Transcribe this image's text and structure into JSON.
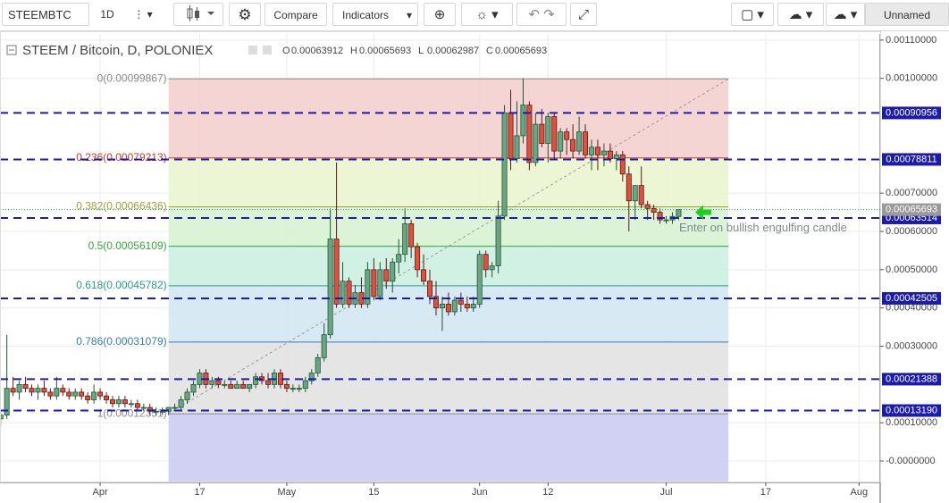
{
  "toolbar": {
    "symbol": "STEEMBTC",
    "interval": "1D",
    "compare": "Compare",
    "indicators": "Indicators",
    "layout": "Unnamed"
  },
  "chart_data": {
    "type": "candlestick",
    "title": "STEEM / Bitcoin, D, POLONIEX",
    "ohlc_legend": [
      {
        "label": "O",
        "value": 0.00063912
      },
      {
        "label": "H",
        "value": 0.00065693
      },
      {
        "label": "L",
        "value": 0.00062987
      },
      {
        "label": "C",
        "value": 0.00065693
      }
    ],
    "x": [
      75,
      76,
      77,
      78,
      79,
      80,
      81,
      82,
      83,
      84,
      85,
      86,
      87,
      88,
      89,
      90,
      91,
      92,
      93,
      94,
      95,
      96,
      97,
      98,
      99,
      100,
      101,
      102,
      103,
      104,
      105,
      106,
      107,
      108,
      109,
      110,
      111,
      112,
      113,
      114,
      115,
      116,
      117,
      118,
      119,
      120,
      121,
      122,
      123,
      124,
      125,
      126,
      127,
      128,
      129,
      130,
      131,
      132,
      133,
      134,
      135,
      136,
      137,
      138,
      139,
      140,
      141,
      142,
      143,
      144,
      145,
      146,
      147,
      148,
      149,
      150,
      151,
      152,
      153,
      154,
      155,
      156,
      157,
      158,
      159,
      160,
      161,
      162,
      163,
      164,
      165,
      166,
      167,
      168,
      169,
      170,
      171,
      172,
      173,
      174,
      175,
      176,
      177,
      178,
      179,
      180,
      181,
      182,
      183,
      184
    ],
    "open": [
      0.00011,
      0.00012,
      0.00019,
      0.00018,
      0.0002,
      0.00019,
      0.00018,
      0.00019,
      0.00018,
      0.00017,
      0.00019,
      0.00018,
      0.00017,
      0.00018,
      0.00017,
      0.00016,
      0.00018,
      0.00017,
      0.00016,
      0.00015,
      0.00016,
      0.00015,
      0.00015,
      0.00014,
      0.00014,
      0.00013,
      0.00013,
      0.00013,
      0.00014,
      0.00014,
      0.00016,
      0.00018,
      0.0002,
      0.00023,
      0.0002,
      0.00021,
      0.0002,
      0.0002,
      0.00019,
      0.0002,
      0.00019,
      0.0002,
      0.00022,
      0.00021,
      0.0002,
      0.00023,
      0.0002,
      0.00019,
      0.00019,
      0.00019,
      0.00021,
      0.00023,
      0.00027,
      0.00033,
      0.00058,
      0.00041,
      0.00047,
      0.00041,
      0.00044,
      0.00041,
      0.0005,
      0.00043,
      0.0005,
      0.00047,
      0.00052,
      0.00054,
      0.00062,
      0.00056,
      0.0005,
      0.00047,
      0.00043,
      0.0004,
      0.00041,
      0.00039,
      0.00042,
      0.00041,
      0.0004,
      0.00041,
      0.00054,
      0.0005,
      0.00051,
      0.00064,
      0.00091,
      0.00079,
      0.00085,
      0.00093,
      0.00078,
      0.00088,
      0.00083,
      0.0009,
      0.00081,
      0.00086,
      0.00084,
      0.00081,
      0.00086,
      0.0008,
      0.00082,
      0.0008,
      0.00081,
      0.00079,
      0.0008,
      0.00075,
      0.00068,
      0.00072,
      0.00067,
      0.00066,
      0.00065,
      0.00063,
      0.00063,
      0.00063912
    ],
    "high": [
      0.00013,
      0.00033,
      0.00022,
      0.00021,
      0.00022,
      0.0002,
      0.0002,
      0.00021,
      0.00019,
      0.00022,
      0.0002,
      0.00019,
      0.00019,
      0.00019,
      0.00018,
      0.0002,
      0.00019,
      0.00018,
      0.00017,
      0.00017,
      0.00017,
      0.00016,
      0.00016,
      0.00015,
      0.00015,
      0.00014,
      0.00014,
      0.00014,
      0.00015,
      0.00017,
      0.00019,
      0.00021,
      0.00024,
      0.00024,
      0.00022,
      0.00022,
      0.00021,
      0.00021,
      0.00021,
      0.00021,
      0.0002,
      0.00023,
      0.00023,
      0.00023,
      0.00024,
      0.00024,
      0.00021,
      0.0002,
      0.0002,
      0.00022,
      0.00024,
      0.00028,
      0.00036,
      0.00066,
      0.00078,
      0.00052,
      0.00048,
      0.00046,
      0.00048,
      0.00052,
      0.00053,
      0.00052,
      0.00053,
      0.00053,
      0.00058,
      0.00066,
      0.00063,
      0.00057,
      0.00054,
      0.0005,
      0.00047,
      0.00043,
      0.00044,
      0.00043,
      0.00044,
      0.00043,
      0.00043,
      0.00055,
      0.00055,
      0.00052,
      0.00068,
      0.00093,
      0.00097,
      0.00094,
      0.001,
      0.00094,
      0.00091,
      0.00092,
      0.00091,
      0.00091,
      0.00087,
      0.00087,
      0.00088,
      0.0009,
      0.00088,
      0.00084,
      0.00084,
      0.00083,
      0.00083,
      0.00081,
      0.00081,
      0.00077,
      0.00072,
      0.00077,
      0.00068,
      0.00067,
      0.00066,
      0.00064,
      0.00065,
      0.00065693
    ],
    "low": [
      9e-05,
      0.00011,
      0.00017,
      0.00016,
      0.00018,
      0.00017,
      0.00016,
      0.00017,
      0.00016,
      0.00016,
      0.00017,
      0.00016,
      0.00016,
      0.00016,
      0.00015,
      0.00015,
      0.00016,
      0.00015,
      0.00014,
      0.00014,
      0.00014,
      0.00014,
      0.00013,
      0.00013,
      0.00012,
      0.00012,
      0.00012,
      0.00012,
      0.00013,
      0.00013,
      0.00015,
      0.00017,
      0.00019,
      0.00019,
      0.00019,
      0.00019,
      0.00019,
      0.00019,
      0.00019,
      0.00019,
      0.00018,
      0.00019,
      0.0002,
      0.00019,
      0.00019,
      0.00019,
      0.00018,
      0.00018,
      0.00018,
      0.00018,
      0.0002,
      0.00022,
      0.00026,
      0.00032,
      0.0004,
      0.0004,
      0.0004,
      0.0004,
      0.0004,
      0.0004,
      0.00042,
      0.00042,
      0.00045,
      0.00044,
      0.00049,
      0.00052,
      0.00053,
      0.00048,
      0.00046,
      0.00041,
      0.00038,
      0.00034,
      0.00038,
      0.00038,
      0.00039,
      0.00039,
      0.00039,
      0.0004,
      0.00048,
      0.00048,
      0.00049,
      0.00063,
      0.00076,
      0.00078,
      0.00083,
      0.00076,
      0.00077,
      0.00082,
      0.00078,
      0.00079,
      0.00079,
      0.0008,
      0.00079,
      0.0008,
      0.00079,
      0.00076,
      0.00076,
      0.00077,
      0.00078,
      0.00076,
      0.00073,
      0.0006,
      0.00063,
      0.00066,
      0.00063,
      0.00063,
      0.00062,
      0.00062,
      0.00062,
      0.00062987
    ],
    "close": [
      0.00012,
      0.00019,
      0.00018,
      0.0002,
      0.00019,
      0.00018,
      0.00019,
      0.00018,
      0.00017,
      0.00019,
      0.00018,
      0.00017,
      0.00018,
      0.00017,
      0.00016,
      0.00018,
      0.00017,
      0.00016,
      0.00015,
      0.00016,
      0.00015,
      0.00015,
      0.00014,
      0.00014,
      0.00013,
      0.00013,
      0.00013,
      0.00014,
      0.00014,
      0.00016,
      0.00018,
      0.0002,
      0.00023,
      0.0002,
      0.00021,
      0.0002,
      0.0002,
      0.00019,
      0.0002,
      0.00019,
      0.0002,
      0.00022,
      0.00021,
      0.0002,
      0.00023,
      0.0002,
      0.00019,
      0.00019,
      0.00019,
      0.00021,
      0.00023,
      0.00027,
      0.00033,
      0.00058,
      0.00041,
      0.00047,
      0.00041,
      0.00044,
      0.00041,
      0.0005,
      0.00043,
      0.0005,
      0.00047,
      0.00052,
      0.00054,
      0.00062,
      0.00056,
      0.0005,
      0.00047,
      0.00043,
      0.0004,
      0.00041,
      0.00039,
      0.00042,
      0.00041,
      0.0004,
      0.00041,
      0.00054,
      0.0005,
      0.00051,
      0.00064,
      0.00091,
      0.00079,
      0.00085,
      0.00093,
      0.00078,
      0.00088,
      0.00083,
      0.0009,
      0.00081,
      0.00086,
      0.00084,
      0.00081,
      0.00086,
      0.0008,
      0.00082,
      0.0008,
      0.00081,
      0.00079,
      0.0008,
      0.00075,
      0.00068,
      0.00072,
      0.00067,
      0.00066,
      0.00065,
      0.00063,
      0.00063,
      0.00063912,
      0.00065693
    ],
    "up_color": "#6ba583",
    "down_color": "#d75442",
    "xlim": [
      74.9,
      216.4
    ],
    "xticks": [
      {
        "value": 91,
        "label": "Apr"
      },
      {
        "value": 107,
        "label": "17"
      },
      {
        "value": 121,
        "label": "May"
      },
      {
        "value": 135,
        "label": "15"
      },
      {
        "value": 152,
        "label": "Jun"
      },
      {
        "value": 163,
        "label": "12"
      },
      {
        "value": 182,
        "label": "Jul"
      },
      {
        "value": 198,
        "label": "17"
      },
      {
        "value": 213,
        "label": "Aug"
      }
    ],
    "ylim": [
      -5.6e-05,
      0.001116
    ],
    "yticks": [
      {
        "value": 0.0011,
        "label": "0.00110000"
      },
      {
        "value": 0.001,
        "label": "0.00100000"
      },
      {
        "value": 0.0007,
        "label": "0.00070000"
      },
      {
        "value": 0.0006,
        "label": "0.00060000"
      },
      {
        "value": 0.0005,
        "label": "0.00050000"
      },
      {
        "value": 0.0004,
        "label": "0.00040000"
      },
      {
        "value": 0.0003,
        "label": "0.00030000"
      },
      {
        "value": 0.0001,
        "label": "0.00010000"
      },
      {
        "value": 0,
        "label": "-0.0000000"
      }
    ],
    "grid": true,
    "fib_x": [
      102,
      192
    ],
    "fib_levels": [
      {
        "label": "0(0.00099867)",
        "value": 0.00099867,
        "color": "#888888",
        "fill": "#f4cfcf"
      },
      {
        "label": "0.236(0.00079213)",
        "value": 0.00079213,
        "color": "#c0392b",
        "fill": "#eaf5cf"
      },
      {
        "label": "0.382(0.00066436)",
        "value": 0.00066436,
        "color": "#9aa33a",
        "fill": "#d8f2d3"
      },
      {
        "label": "0.5(0.00056109)",
        "value": 0.00056109,
        "color": "#3aa33a",
        "fill": "#cdf0e2"
      },
      {
        "label": "0.618(0.00045782)",
        "value": 0.00045782,
        "color": "#2a9a8a",
        "fill": "#d3e7f2"
      },
      {
        "label": "0.786(0.00031079)",
        "value": 0.00031079,
        "color": "#3a7ab0",
        "fill": "#e2e2e2"
      },
      {
        "label": "1(0.00012351)",
        "value": 0.00012351,
        "color": "#888888",
        "fill": "#cccdf2"
      }
    ],
    "hline_color": "#1c1ca8",
    "hlines": [
      0.00090956,
      0.00078811,
      0.00063514,
      0.00042505,
      0.00021388,
      {
        "value": 0.0001319,
        "label": "0.00013190"
      }
    ],
    "last_price": 0.00065693,
    "annotation": "Enter on bullish engulfing candle"
  }
}
